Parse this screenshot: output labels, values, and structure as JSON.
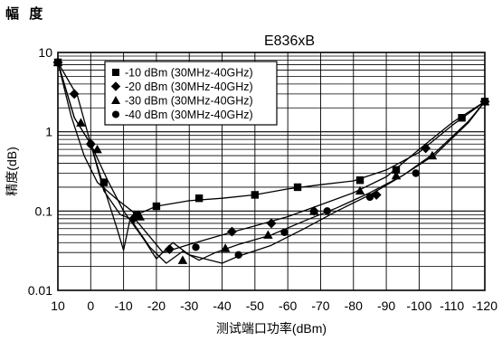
{
  "page_heading": "幅 度",
  "chart_data": {
    "type": "line",
    "title": "E836xB",
    "xlabel": "测试端口功率(dBm)",
    "ylabel": "精度(dB)",
    "x_tick_labels": [
      "10",
      "0",
      "-10",
      "-20",
      "-30",
      "-40",
      "-50",
      "-60",
      "-70",
      "-80",
      "-90",
      "-100",
      "-110",
      "-120"
    ],
    "x_ticks": [
      10,
      0,
      -10,
      -20,
      -30,
      -40,
      -50,
      -60,
      -70,
      -80,
      -90,
      -100,
      -110,
      -120
    ],
    "y_tick_labels": [
      "10",
      "1",
      "0.1",
      "0.01"
    ],
    "y_ticks": [
      10,
      1,
      0.1,
      0.01
    ],
    "xlim": [
      10,
      -120
    ],
    "ylim": [
      0.01,
      10
    ],
    "y_scale": "log",
    "grid": true,
    "legend_position": "top-left",
    "series": [
      {
        "name": "-10 dBm (30MHz-40GHz)",
        "marker": "square",
        "x": [
          10,
          6,
          2,
          -2,
          -8,
          -14,
          -20,
          -30,
          -40,
          -50,
          -60,
          -70,
          -80,
          -90,
          -100,
          -110,
          -120
        ],
        "y": [
          7.5,
          1.6,
          0.5,
          0.23,
          0.14,
          0.09,
          0.115,
          0.135,
          0.145,
          0.16,
          0.19,
          0.215,
          0.24,
          0.33,
          0.55,
          1.2,
          2.4
        ],
        "markers_x": [
          10,
          -4,
          -14,
          -20,
          -33,
          -50,
          -63,
          -82,
          -93,
          -113,
          -120
        ],
        "markers_y": [
          7.5,
          0.23,
          0.09,
          0.115,
          0.145,
          0.16,
          0.2,
          0.245,
          0.33,
          1.5,
          2.4
        ]
      },
      {
        "name": "-20 dBm (30MHz-40GHz)",
        "marker": "diamond",
        "x": [
          10,
          4,
          0,
          -4,
          -9,
          -14,
          -22,
          -30,
          -40,
          -50,
          -60,
          -70,
          -80,
          -90,
          -100,
          -110,
          -120
        ],
        "y": [
          7.5,
          2.8,
          0.7,
          0.18,
          0.09,
          0.075,
          0.03,
          0.038,
          0.05,
          0.065,
          0.085,
          0.12,
          0.17,
          0.27,
          0.6,
          1.3,
          2.4
        ],
        "markers_x": [
          10,
          5,
          0,
          -13,
          -24,
          -43,
          -55,
          -68,
          -87,
          -102,
          -120
        ],
        "markers_y": [
          7.5,
          3.0,
          0.7,
          0.08,
          0.033,
          0.055,
          0.07,
          0.1,
          0.16,
          0.62,
          2.4
        ]
      },
      {
        "name": "-30 dBm (30MHz-40GHz)",
        "marker": "triangle",
        "x": [
          10,
          5,
          0,
          -4,
          -8,
          -10,
          -12,
          -18,
          -23,
          -28,
          -33,
          -38,
          -45,
          -55,
          -65,
          -75,
          -85,
          -95,
          -105,
          -115,
          -120
        ],
        "y": [
          7.5,
          1.5,
          0.7,
          0.2,
          0.06,
          0.032,
          0.08,
          0.035,
          0.022,
          0.031,
          0.024,
          0.03,
          0.038,
          0.05,
          0.075,
          0.11,
          0.17,
          0.28,
          0.55,
          1.35,
          2.4
        ],
        "markers_x": [
          10,
          3,
          -2,
          -15,
          -28,
          -41,
          -54,
          -68,
          -82,
          -93,
          -104,
          -120
        ],
        "markers_y": [
          7.5,
          1.3,
          0.6,
          0.085,
          0.024,
          0.034,
          0.05,
          0.1,
          0.18,
          0.28,
          0.5,
          2.4
        ]
      },
      {
        "name": "-40 dBm (30MHz-40GHz)",
        "marker": "circle",
        "x": [
          10,
          5,
          0,
          -5,
          -10,
          -16,
          -20,
          -25,
          -30,
          -40,
          -45,
          -55,
          -65,
          -75,
          -85,
          -95,
          -105,
          -115,
          -120
        ],
        "y": [
          7.5,
          1.5,
          0.7,
          0.25,
          0.1,
          0.045,
          0.025,
          0.04,
          0.028,
          0.022,
          0.027,
          0.037,
          0.06,
          0.1,
          0.16,
          0.28,
          0.52,
          1.3,
          2.4
        ],
        "markers_x": [
          10,
          0,
          -32,
          -45,
          -59,
          -72,
          -85,
          -99,
          -113,
          -120
        ],
        "markers_y": [
          7.5,
          0.7,
          0.035,
          0.028,
          0.054,
          0.1,
          0.15,
          0.3,
          1.5,
          2.4
        ]
      }
    ]
  }
}
